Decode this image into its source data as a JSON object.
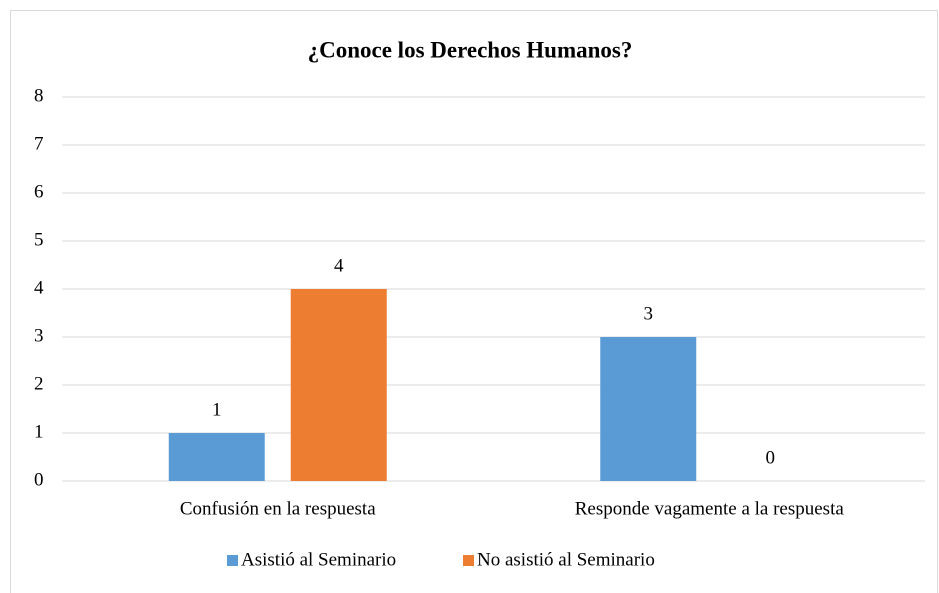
{
  "chart_data": {
    "type": "bar",
    "title": "¿Conoce los Derechos Humanos?",
    "categories": [
      "Confusión en la respuesta",
      "Responde vagamente a la respuesta"
    ],
    "series": [
      {
        "name": "Asistió al Seminario",
        "color": "#5b9bd5",
        "values": [
          1,
          3
        ]
      },
      {
        "name": "No asistió al Seminario",
        "color": "#ed7d31",
        "values": [
          4,
          0
        ]
      }
    ],
    "ylim": [
      0,
      8
    ],
    "yticks": [
      0,
      1,
      2,
      3,
      4,
      5,
      6,
      7,
      8
    ],
    "grid": true,
    "legend": "bottom"
  }
}
